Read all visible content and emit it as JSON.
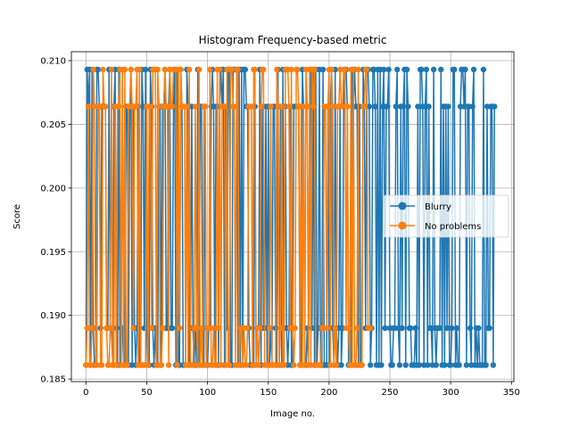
{
  "chart_data": {
    "type": "line",
    "title": "Histogram Frequency-based metric",
    "xlabel": "Image no.",
    "ylabel": "Score",
    "xlim": [
      -12,
      352
    ],
    "ylim": [
      0.1848,
      0.2107
    ],
    "xticks": [
      0,
      50,
      100,
      150,
      200,
      250,
      300,
      350
    ],
    "yticks": [
      0.185,
      0.19,
      0.195,
      0.2,
      0.205,
      0.21
    ],
    "ytick_labels": [
      "0.185",
      "0.190",
      "0.195",
      "0.200",
      "0.205",
      "0.210"
    ],
    "grid": true,
    "legend_position": "center-right",
    "levels": [
      0.1861,
      0.189,
      0.2064,
      0.2093
    ],
    "series": [
      {
        "name": "Blurry",
        "color": "#1f77b4",
        "length": 337,
        "seed": 7
      },
      {
        "name": "No problems",
        "color": "#ff7f0e",
        "length": 235,
        "seed": 13
      }
    ]
  }
}
